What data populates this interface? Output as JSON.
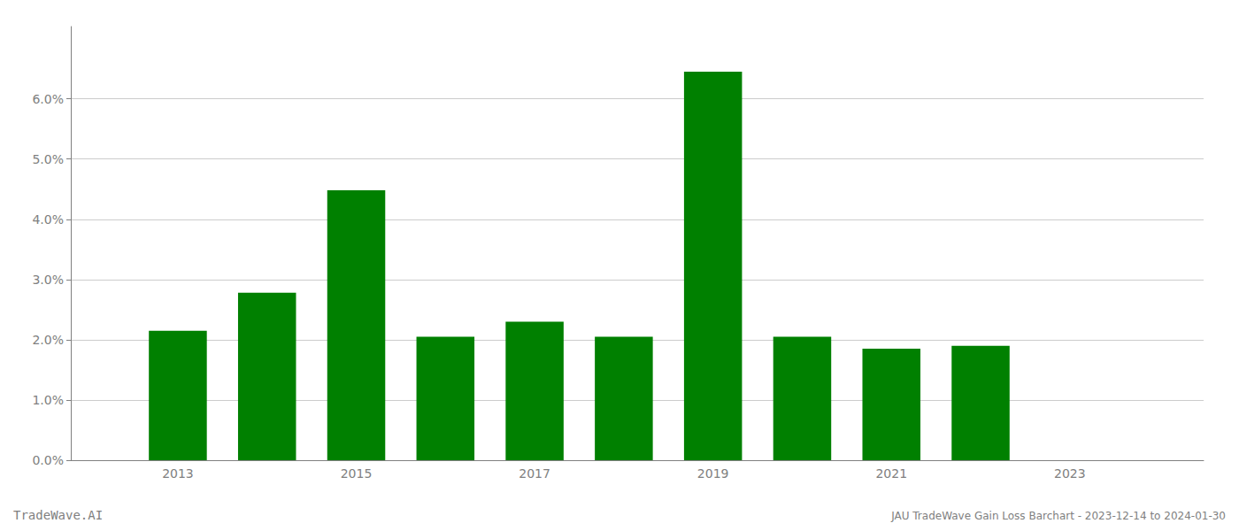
{
  "chart_data": {
    "type": "bar",
    "title": "JAU TradeWave Gain Loss Barchart - 2023-12-14 to 2024-01-30",
    "annotations": [
      "TradeWave.AI"
    ],
    "x": [
      2013,
      2014,
      2015,
      2016,
      2017,
      2018,
      2019,
      2020,
      2021,
      2022
    ],
    "values": [
      0.0215,
      0.0278,
      0.0448,
      0.0205,
      0.023,
      0.0205,
      0.0645,
      0.0205,
      0.0185,
      0.019
    ],
    "color": "#008000",
    "xlim": [
      2011.8,
      2024.5
    ],
    "xticks": [
      2013,
      2015,
      2017,
      2019,
      2021,
      2023
    ],
    "ylim": [
      0.0,
      0.072
    ],
    "yticks": [
      {
        "value": 0.0,
        "label": "0.0%"
      },
      {
        "value": 0.01,
        "label": "1.0%"
      },
      {
        "value": 0.02,
        "label": "2.0%"
      },
      {
        "value": 0.03,
        "label": "3.0%"
      },
      {
        "value": 0.04,
        "label": "4.0%"
      },
      {
        "value": 0.05,
        "label": "5.0%"
      },
      {
        "value": 0.06,
        "label": "6.0%"
      }
    ],
    "grid": true
  }
}
